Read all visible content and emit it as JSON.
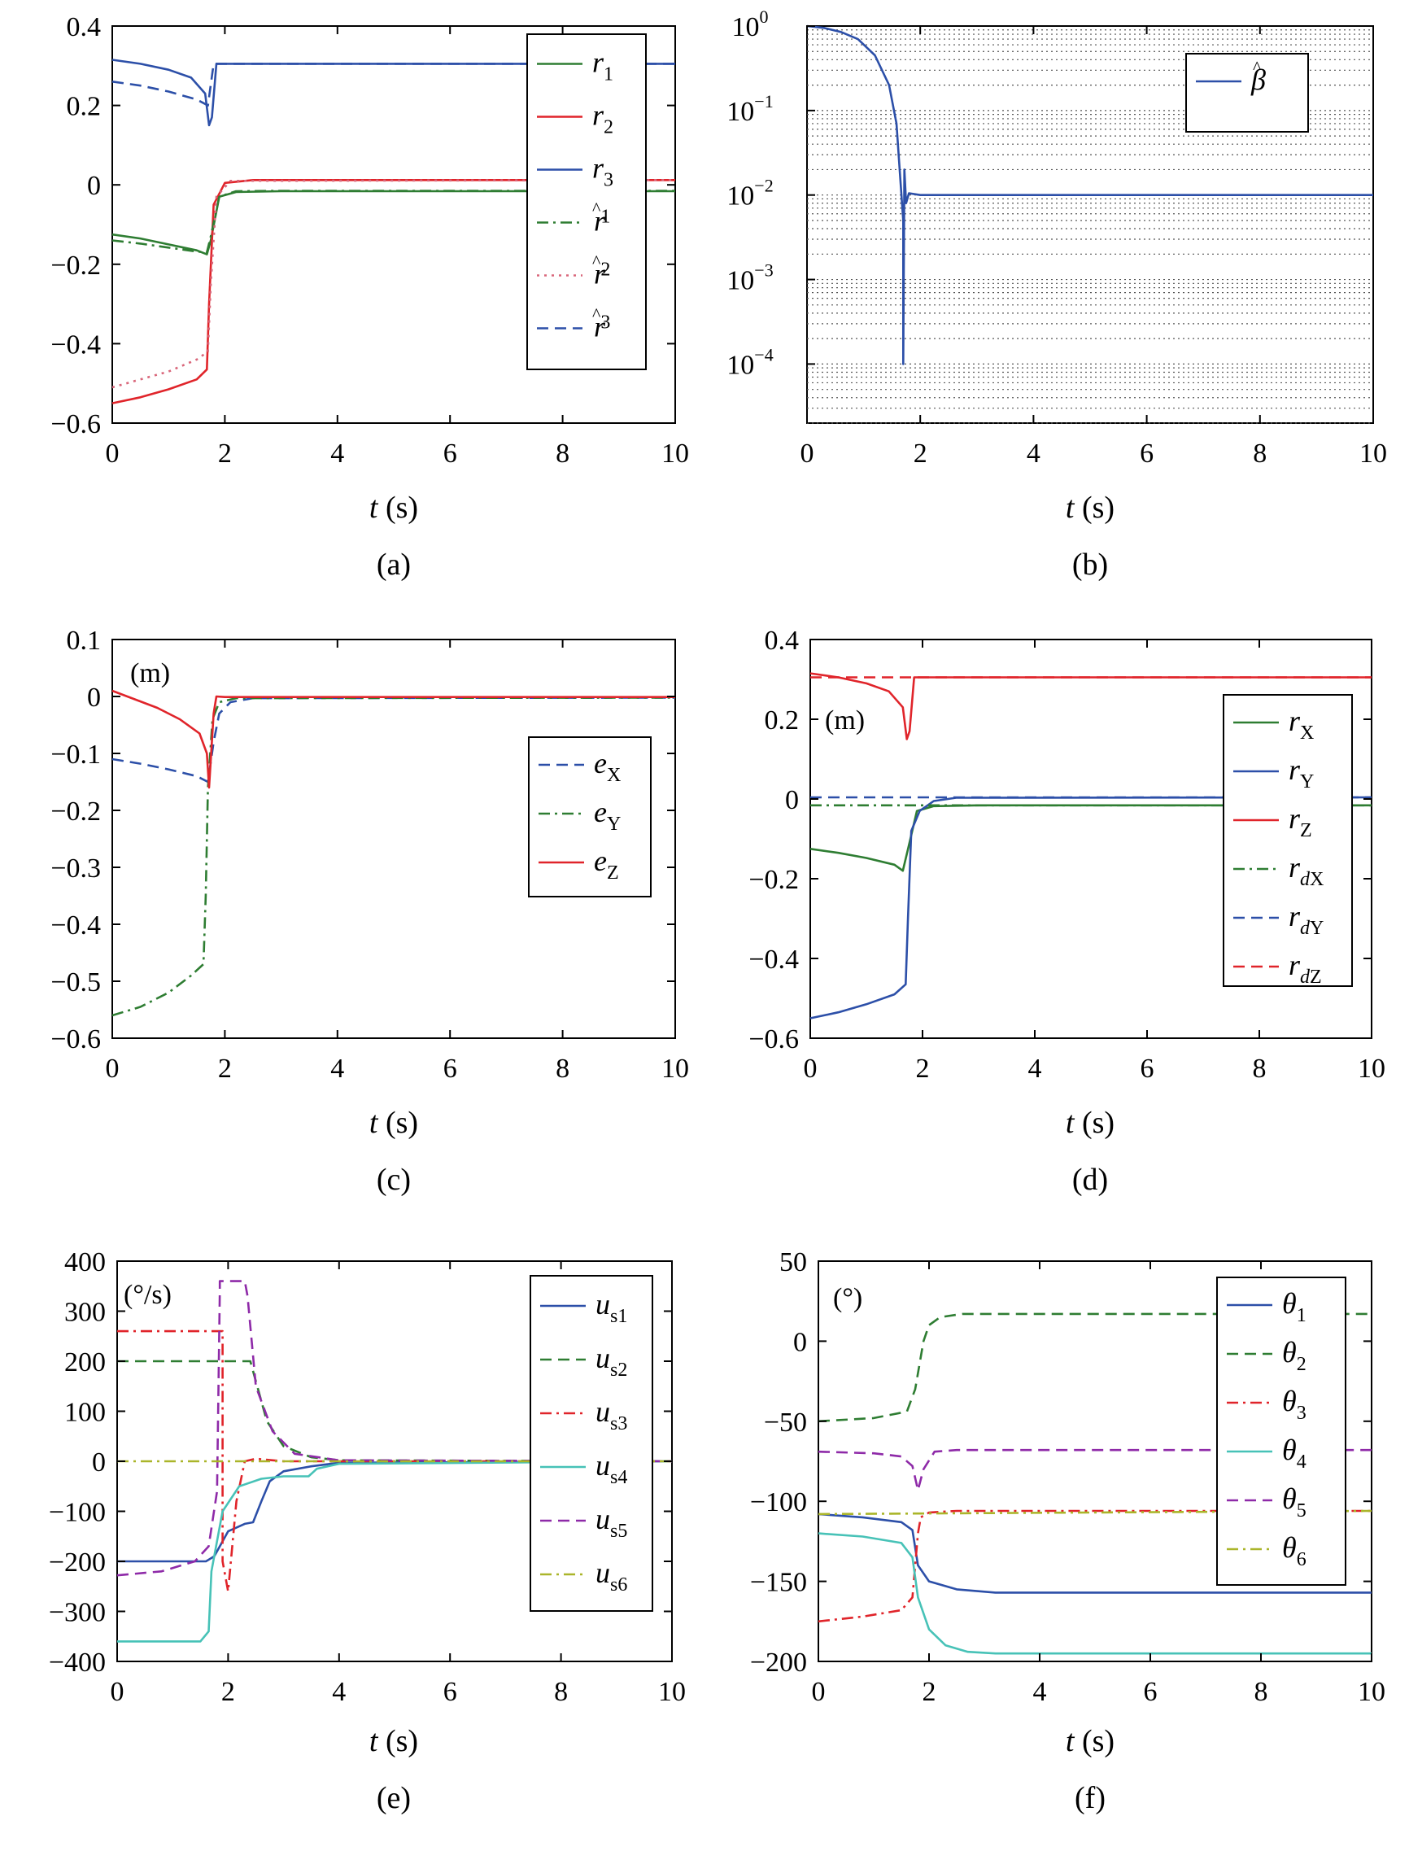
{
  "figure": {
    "panels": [
      {
        "caption": "(a)",
        "xlabel_italic": "t",
        "xlabel_rest": " (s)",
        "unit_note": ""
      },
      {
        "caption": "(b)",
        "xlabel_italic": "t",
        "xlabel_rest": " (s)",
        "unit_note": ""
      },
      {
        "caption": "(c)",
        "xlabel_italic": "t",
        "xlabel_rest": " (s)",
        "unit_note": "(m)"
      },
      {
        "caption": "(d)",
        "xlabel_italic": "t",
        "xlabel_rest": " (s)",
        "unit_note": "(m)"
      },
      {
        "caption": "(e)",
        "xlabel_italic": "t",
        "xlabel_rest": " (s)",
        "unit_note": "(°/s)"
      },
      {
        "caption": "(f)",
        "xlabel_italic": "t",
        "xlabel_rest": " (s)",
        "unit_note": "(°)"
      }
    ]
  },
  "colors": {
    "green": "#2e7d32",
    "red": "#e0242a",
    "blue": "#2c4fa8",
    "purple": "#8e2aa8",
    "cyan": "#47c2b7",
    "olive": "#aab52a",
    "pink": "#d9667a",
    "grid": "#555555"
  },
  "chart_data": [
    {
      "type": "line",
      "panel": "a",
      "xlim": [
        0,
        10
      ],
      "ylim": [
        -0.6,
        0.4
      ],
      "xticks": [
        0,
        2,
        4,
        6,
        8,
        10
      ],
      "yticks": [
        -0.6,
        -0.4,
        -0.2,
        0,
        0.2,
        0.4
      ],
      "xticklabels": [
        "0",
        "2",
        "4",
        "6",
        "8",
        "10"
      ],
      "yticklabels": [
        "−0.6",
        "−0.4",
        "−0.2",
        "0",
        "0.2",
        "0.4"
      ],
      "legend": "top-right",
      "series": [
        {
          "name": "r",
          "sub": "1",
          "hat": false,
          "color": "green",
          "dash": "solid",
          "x": [
            0,
            0.5,
            1.0,
            1.5,
            1.68,
            1.75,
            1.9,
            2.2,
            3,
            10
          ],
          "y": [
            -0.125,
            -0.135,
            -0.15,
            -0.165,
            -0.175,
            -0.14,
            -0.03,
            -0.018,
            -0.016,
            -0.016
          ]
        },
        {
          "name": "r",
          "sub": "2",
          "hat": false,
          "color": "red",
          "dash": "solid",
          "x": [
            0,
            0.5,
            1.0,
            1.5,
            1.68,
            1.72,
            1.8,
            2.0,
            2.5,
            10
          ],
          "y": [
            -0.55,
            -0.535,
            -0.515,
            -0.49,
            -0.465,
            -0.3,
            -0.05,
            0.005,
            0.012,
            0.012
          ]
        },
        {
          "name": "r",
          "sub": "3",
          "hat": false,
          "color": "blue",
          "dash": "solid",
          "x": [
            0,
            0.5,
            1.0,
            1.4,
            1.65,
            1.72,
            1.77,
            1.85,
            1.95,
            10
          ],
          "y": [
            0.315,
            0.305,
            0.29,
            0.27,
            0.23,
            0.15,
            0.17,
            0.305,
            0.305,
            0.305
          ]
        },
        {
          "name": "r",
          "sub": "1",
          "hat": true,
          "color": "green",
          "dash": "dashdot",
          "x": [
            0,
            0.5,
            1.0,
            1.5,
            1.68,
            1.75,
            1.9,
            2.2,
            3,
            10
          ],
          "y": [
            -0.14,
            -0.148,
            -0.158,
            -0.168,
            -0.17,
            -0.13,
            -0.03,
            -0.016,
            -0.015,
            -0.015
          ]
        },
        {
          "name": "r",
          "sub": "2",
          "hat": true,
          "color": "pink",
          "dash": "dotted",
          "x": [
            0,
            0.5,
            1.0,
            1.5,
            1.7,
            1.75,
            1.85,
            2.1,
            10
          ],
          "y": [
            -0.51,
            -0.49,
            -0.47,
            -0.44,
            -0.42,
            -0.25,
            -0.03,
            0.01,
            0.012
          ]
        },
        {
          "name": "r",
          "sub": "3",
          "hat": true,
          "color": "blue",
          "dash": "dashed",
          "x": [
            0,
            0.5,
            1.0,
            1.5,
            1.7,
            1.8,
            1.9,
            10
          ],
          "y": [
            0.26,
            0.25,
            0.235,
            0.215,
            0.2,
            0.305,
            0.305,
            0.305
          ]
        }
      ]
    },
    {
      "type": "line",
      "panel": "b",
      "yscale": "log",
      "xlim": [
        0,
        10
      ],
      "ylim": [
        2e-05,
        1.0
      ],
      "xticks": [
        0,
        2,
        4,
        6,
        8,
        10
      ],
      "yticks_exp": [
        0,
        -1,
        -2,
        -3,
        -4
      ],
      "xticklabels": [
        "0",
        "2",
        "4",
        "6",
        "8",
        "10"
      ],
      "ytick_base": "10",
      "ytick_exponents": [
        "0",
        "−1",
        "−2",
        "−3",
        "−4"
      ],
      "grid": "dotted-log",
      "legend": "top-right",
      "series": [
        {
          "name": "β",
          "sub": "",
          "hat": true,
          "color": "blue",
          "dash": "solid",
          "x": [
            0,
            0.3,
            0.6,
            0.9,
            1.2,
            1.45,
            1.58,
            1.65,
            1.7,
            1.7,
            1.72,
            1.75,
            1.8,
            2.0,
            10
          ],
          "y": [
            1.0,
            0.95,
            0.85,
            0.7,
            0.45,
            0.2,
            0.07,
            0.015,
            0.005,
            0.0001,
            0.02,
            0.008,
            0.0105,
            0.01,
            0.01
          ]
        }
      ]
    },
    {
      "type": "line",
      "panel": "c",
      "xlim": [
        0,
        10
      ],
      "ylim": [
        -0.6,
        0.1
      ],
      "xticks": [
        0,
        2,
        4,
        6,
        8,
        10
      ],
      "yticks": [
        -0.6,
        -0.5,
        -0.4,
        -0.3,
        -0.2,
        -0.1,
        0,
        0.1
      ],
      "xticklabels": [
        "0",
        "2",
        "4",
        "6",
        "8",
        "10"
      ],
      "yticklabels": [
        "−0.6",
        "−0.5",
        "−0.4",
        "−0.3",
        "−0.2",
        "−0.1",
        "0",
        "0.1"
      ],
      "legend": "right",
      "series": [
        {
          "name": "e",
          "sub": "X",
          "hat": false,
          "color": "blue",
          "dash": "dashed",
          "x": [
            0,
            0.5,
            1.0,
            1.5,
            1.7,
            1.8,
            1.9,
            2.1,
            2.5,
            10
          ],
          "y": [
            -0.11,
            -0.118,
            -0.128,
            -0.14,
            -0.15,
            -0.08,
            -0.03,
            -0.01,
            -0.003,
            -0.002
          ]
        },
        {
          "name": "e",
          "sub": "Y",
          "hat": false,
          "color": "green",
          "dash": "dashdot",
          "x": [
            0,
            0.5,
            1.0,
            1.4,
            1.62,
            1.66,
            1.7,
            1.78,
            1.9,
            2.2,
            10
          ],
          "y": [
            -0.56,
            -0.545,
            -0.52,
            -0.49,
            -0.47,
            -0.35,
            -0.16,
            -0.04,
            -0.01,
            -0.003,
            -0.002
          ]
        },
        {
          "name": "e",
          "sub": "Z",
          "hat": false,
          "color": "red",
          "dash": "solid",
          "x": [
            0,
            0.4,
            0.8,
            1.2,
            1.55,
            1.68,
            1.72,
            1.8,
            1.85,
            2.0,
            10
          ],
          "y": [
            0.01,
            -0.005,
            -0.02,
            -0.04,
            -0.065,
            -0.1,
            -0.16,
            -0.03,
            0.0,
            -0.001,
            -0.001
          ]
        }
      ]
    },
    {
      "type": "line",
      "panel": "d",
      "xlim": [
        0,
        10
      ],
      "ylim": [
        -0.6,
        0.4
      ],
      "xticks": [
        0,
        2,
        4,
        6,
        8,
        10
      ],
      "yticks": [
        -0.6,
        -0.4,
        -0.2,
        0,
        0.2,
        0.4
      ],
      "xticklabels": [
        "0",
        "2",
        "4",
        "6",
        "8",
        "10"
      ],
      "yticklabels": [
        "−0.6",
        "−0.4",
        "−0.2",
        "0",
        "0.2",
        "0.4"
      ],
      "legend": "right",
      "series": [
        {
          "name": "r",
          "sub": "X",
          "hat": false,
          "color": "green",
          "dash": "solid",
          "x": [
            0,
            0.5,
            1.0,
            1.5,
            1.65,
            1.75,
            1.9,
            2.2,
            3,
            10
          ],
          "y": [
            -0.125,
            -0.135,
            -0.148,
            -0.165,
            -0.18,
            -0.12,
            -0.03,
            -0.018,
            -0.016,
            -0.016
          ]
        },
        {
          "name": "r",
          "sub": "Y",
          "hat": false,
          "color": "blue",
          "dash": "solid",
          "x": [
            0,
            0.5,
            1.0,
            1.5,
            1.7,
            1.74,
            1.8,
            1.95,
            2.2,
            2.6,
            10
          ],
          "y": [
            -0.55,
            -0.535,
            -0.515,
            -0.49,
            -0.465,
            -0.3,
            -0.08,
            -0.03,
            -0.005,
            0.003,
            0.004
          ]
        },
        {
          "name": "r",
          "sub": "Z",
          "hat": false,
          "color": "red",
          "dash": "solid",
          "x": [
            0,
            0.5,
            1.0,
            1.4,
            1.65,
            1.72,
            1.77,
            1.85,
            1.95,
            10
          ],
          "y": [
            0.315,
            0.305,
            0.29,
            0.27,
            0.23,
            0.15,
            0.17,
            0.305,
            0.305,
            0.305
          ]
        },
        {
          "name": "r",
          "sub": "X",
          "dsub": true,
          "hat": false,
          "color": "green",
          "dash": "dashdot",
          "x": [
            0,
            10
          ],
          "y": [
            -0.016,
            -0.016
          ]
        },
        {
          "name": "r",
          "sub": "Y",
          "dsub": true,
          "hat": false,
          "color": "blue",
          "dash": "dashed",
          "x": [
            0,
            10
          ],
          "y": [
            0.004,
            0.004
          ]
        },
        {
          "name": "r",
          "sub": "Z",
          "dsub": true,
          "hat": false,
          "color": "red",
          "dash": "dashed",
          "x": [
            0,
            10
          ],
          "y": [
            0.305,
            0.305
          ]
        }
      ]
    },
    {
      "type": "line",
      "panel": "e",
      "xlim": [
        0,
        10
      ],
      "ylim": [
        -400,
        400
      ],
      "xticks": [
        0,
        2,
        4,
        6,
        8,
        10
      ],
      "yticks": [
        -400,
        -300,
        -200,
        -100,
        0,
        100,
        200,
        300,
        400
      ],
      "xticklabels": [
        "0",
        "2",
        "4",
        "6",
        "8",
        "10"
      ],
      "yticklabels": [
        "−400",
        "−300",
        "−200",
        "−100",
        "0",
        "100",
        "200",
        "300",
        "400"
      ],
      "legend": "right",
      "series": [
        {
          "name": "u",
          "sub": "s1",
          "upright": true,
          "hat": false,
          "color": "blue",
          "dash": "solid",
          "x": [
            0,
            1.6,
            1.75,
            2.0,
            2.3,
            2.45,
            2.6,
            2.75,
            3.0,
            3.5,
            4.0,
            10
          ],
          "y": [
            -200,
            -200,
            -190,
            -140,
            -125,
            -122,
            -80,
            -40,
            -20,
            -10,
            -3,
            0
          ]
        },
        {
          "name": "u",
          "sub": "s2",
          "upright": true,
          "hat": false,
          "color": "green",
          "dash": "dashed",
          "x": [
            0,
            2.4,
            2.5,
            2.7,
            3.0,
            3.5,
            4.0,
            10
          ],
          "y": [
            200,
            200,
            160,
            80,
            30,
            8,
            2,
            0
          ]
        },
        {
          "name": "u",
          "sub": "s3",
          "upright": true,
          "hat": false,
          "color": "red",
          "dash": "dashdot",
          "x": [
            0,
            1.9,
            1.9,
            2.0,
            2.15,
            2.3,
            2.5,
            3.0,
            10
          ],
          "y": [
            260,
            260,
            -200,
            -260,
            -80,
            0,
            5,
            0,
            0
          ]
        },
        {
          "name": "u",
          "sub": "s4",
          "upright": true,
          "hat": false,
          "color": "cyan",
          "dash": "solid",
          "x": [
            0,
            1.5,
            1.65,
            1.7,
            1.9,
            2.2,
            2.6,
            3.0,
            3.45,
            3.6,
            4.0,
            10
          ],
          "y": [
            -360,
            -360,
            -340,
            -220,
            -100,
            -50,
            -35,
            -30,
            -30,
            -15,
            -5,
            0
          ]
        },
        {
          "name": "u",
          "sub": "s5",
          "upright": true,
          "hat": false,
          "color": "purple",
          "dash": "dashed",
          "x": [
            0,
            0.8,
            1.4,
            1.65,
            1.8,
            1.85,
            1.85,
            2.3,
            2.35,
            2.5,
            2.8,
            3.2,
            4.0,
            10
          ],
          "y": [
            -228,
            -220,
            -200,
            -170,
            -60,
            340,
            360,
            360,
            330,
            150,
            60,
            15,
            2,
            0
          ]
        },
        {
          "name": "u",
          "sub": "s6",
          "upright": true,
          "hat": false,
          "color": "olive",
          "dash": "dashdot",
          "x": [
            0,
            10
          ],
          "y": [
            0,
            0
          ]
        }
      ]
    },
    {
      "type": "line",
      "panel": "f",
      "xlim": [
        0,
        10
      ],
      "ylim": [
        -200,
        50
      ],
      "xticks": [
        0,
        2,
        4,
        6,
        8,
        10
      ],
      "yticks": [
        -200,
        -150,
        -100,
        -50,
        0,
        50
      ],
      "xticklabels": [
        "0",
        "2",
        "4",
        "6",
        "8",
        "10"
      ],
      "yticklabels": [
        "−200",
        "−150",
        "−100",
        "−50",
        "0",
        "50"
      ],
      "legend": "top-right",
      "series": [
        {
          "name": "θ",
          "sub": "1",
          "hat": false,
          "color": "blue",
          "dash": "solid",
          "x": [
            0,
            0.8,
            1.5,
            1.7,
            1.8,
            2.0,
            2.5,
            3.2,
            10
          ],
          "y": [
            -108,
            -110,
            -113,
            -118,
            -140,
            -150,
            -155,
            -157,
            -157
          ]
        },
        {
          "name": "θ",
          "sub": "2",
          "hat": false,
          "color": "green",
          "dash": "dashed",
          "x": [
            0,
            1.0,
            1.6,
            1.75,
            1.9,
            2.0,
            2.2,
            2.6,
            3.5,
            10
          ],
          "y": [
            -50,
            -48,
            -44,
            -30,
            0,
            10,
            15,
            17,
            17,
            17
          ]
        },
        {
          "name": "θ",
          "sub": "3",
          "hat": false,
          "color": "red",
          "dash": "dashdot",
          "x": [
            0,
            0.8,
            1.5,
            1.7,
            1.8,
            1.85,
            2.0,
            2.5,
            10
          ],
          "y": [
            -175,
            -172,
            -168,
            -160,
            -120,
            -110,
            -107,
            -106,
            -106
          ]
        },
        {
          "name": "θ",
          "sub": "4",
          "hat": false,
          "color": "cyan",
          "dash": "solid",
          "x": [
            0,
            0.8,
            1.5,
            1.7,
            1.8,
            2.0,
            2.3,
            2.7,
            3.2,
            10
          ],
          "y": [
            -120,
            -122,
            -126,
            -135,
            -160,
            -180,
            -190,
            -194,
            -195,
            -195
          ]
        },
        {
          "name": "θ",
          "sub": "5",
          "hat": false,
          "color": "purple",
          "dash": "dashed",
          "x": [
            0,
            1.0,
            1.5,
            1.7,
            1.8,
            1.9,
            2.1,
            2.5,
            10
          ],
          "y": [
            -69,
            -70,
            -72,
            -78,
            -93,
            -80,
            -69,
            -68,
            -68
          ]
        },
        {
          "name": "θ",
          "sub": "6",
          "hat": false,
          "color": "olive",
          "dash": "dashdot",
          "x": [
            0,
            10
          ],
          "y": [
            -108,
            -106
          ]
        }
      ]
    }
  ]
}
